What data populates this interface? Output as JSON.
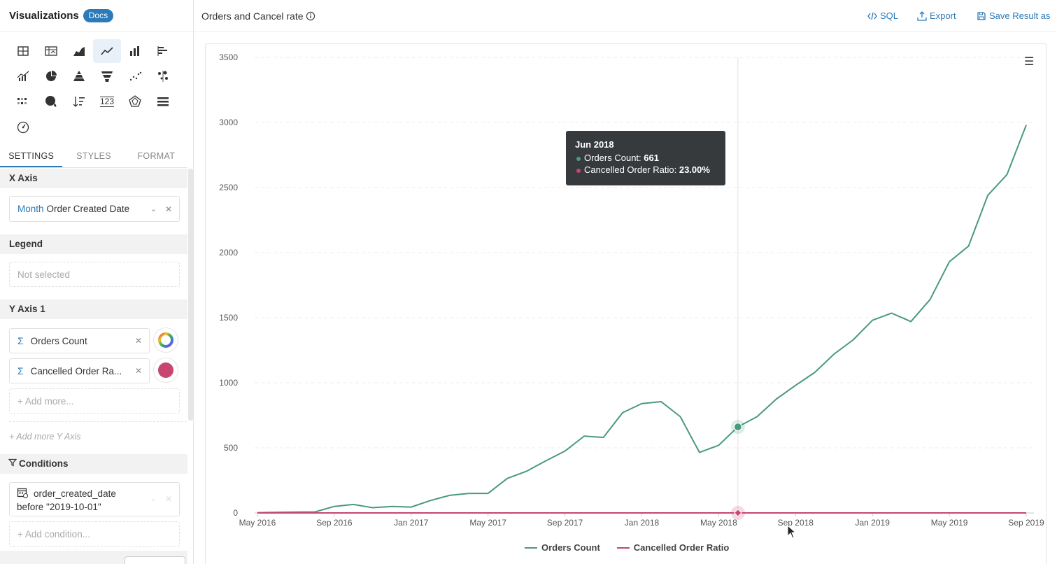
{
  "sidebar": {
    "title": "Visualizations",
    "docs_badge": "Docs",
    "viz_types": [
      {
        "icon": "table-icon"
      },
      {
        "icon": "pivot-table-icon"
      },
      {
        "icon": "area-chart-icon"
      },
      {
        "icon": "line-chart-icon",
        "active": true
      },
      {
        "icon": "column-chart-icon"
      },
      {
        "icon": "bar-chart-icon"
      },
      {
        "icon": "combo-chart-icon"
      },
      {
        "icon": "pie-chart-icon"
      },
      {
        "icon": "pyramid-chart-icon"
      },
      {
        "icon": "funnel-chart-icon"
      },
      {
        "icon": "scatter-chart-icon"
      },
      {
        "icon": "bubble-chart-icon"
      },
      {
        "icon": "heatmap-icon"
      },
      {
        "icon": "geo-map-icon"
      },
      {
        "icon": "sorted-list-icon"
      },
      {
        "icon": "number-kpi-icon",
        "label": "123"
      },
      {
        "icon": "radar-chart-icon"
      },
      {
        "icon": "progress-bars-icon"
      },
      {
        "icon": "gauge-icon"
      }
    ],
    "tabs": [
      "SETTINGS",
      "STYLES",
      "FORMAT"
    ],
    "x_axis": {
      "heading": "X Axis",
      "granularity": "Month",
      "field": "Order Created Date"
    },
    "legend": {
      "heading": "Legend",
      "placeholder": "Not selected"
    },
    "y_axis": {
      "heading": "Y Axis 1",
      "fields": [
        "Orders Count",
        "Cancelled Order Ra..."
      ],
      "add_more": "+ Add more...",
      "add_more_axis": "+ Add more Y Axis"
    },
    "conditions": {
      "heading": "Conditions",
      "field": "order_created_date",
      "rule": "before \"2019-10-01\"",
      "add": "+ Add condition..."
    }
  },
  "topbar": {
    "chart_title": "Orders and Cancel rate",
    "sql_label": "SQL",
    "export_label": "Export",
    "save_label": "Save Result as"
  },
  "tooltip": {
    "title": "Jun 2018",
    "row1_label": "Orders Count: ",
    "row1_value": "661",
    "row2_label": "Cancelled Order Ratio: ",
    "row2_value": "23.00%"
  },
  "colors": {
    "accent": "#2c7ab8",
    "orders_series": "#4a9a7c",
    "cancel_series": "#c8456f"
  },
  "chart_data": {
    "type": "line",
    "x": [
      "May 2016",
      "Jun 2016",
      "Jul 2016",
      "Aug 2016",
      "Sep 2016",
      "Oct 2016",
      "Nov 2016",
      "Dec 2016",
      "Jan 2017",
      "Feb 2017",
      "Mar 2017",
      "Apr 2017",
      "May 2017",
      "Jun 2017",
      "Jul 2017",
      "Aug 2017",
      "Sep 2017",
      "Oct 2017",
      "Nov 2017",
      "Dec 2017",
      "Jan 2018",
      "Feb 2018",
      "Mar 2018",
      "Apr 2018",
      "May 2018",
      "Jun 2018",
      "Jul 2018",
      "Aug 2018",
      "Sep 2018",
      "Oct 2018",
      "Nov 2018",
      "Dec 2018",
      "Jan 2019",
      "Feb 2019",
      "Mar 2019",
      "Apr 2019",
      "May 2019",
      "Jun 2019",
      "Jul 2019",
      "Aug 2019",
      "Sep 2019"
    ],
    "xticks": [
      "May 2016",
      "Sep 2016",
      "Jan 2017",
      "May 2017",
      "Sep 2017",
      "Jan 2018",
      "May 2018",
      "Sep 2018",
      "Jan 2019",
      "May 2019",
      "Sep 2019"
    ],
    "series": [
      {
        "name": "Orders Count",
        "values": [
          2,
          5,
          7,
          8,
          50,
          65,
          40,
          50,
          45,
          95,
          135,
          150,
          150,
          265,
          320,
          400,
          475,
          590,
          580,
          770,
          840,
          855,
          740,
          465,
          520,
          661,
          740,
          875,
          980,
          1080,
          1220,
          1330,
          1480,
          1535,
          1470,
          1640,
          1930,
          2050,
          2440,
          2600,
          2980
        ]
      },
      {
        "name": "Cancelled Order Ratio",
        "values": [
          0.02,
          0.02,
          0.02,
          0.02,
          0.02,
          0.02,
          0.02,
          0.02,
          0.02,
          0.02,
          0.02,
          0.02,
          0.02,
          0.02,
          0.02,
          0.02,
          0.02,
          0.02,
          0.02,
          0.02,
          0.02,
          0.02,
          0.02,
          0.02,
          0.02,
          0.23,
          0.02,
          0.02,
          0.02,
          0.02,
          0.02,
          0.02,
          0.02,
          0.02,
          0.02,
          0.02,
          0.02,
          0.02,
          0.02,
          0.02,
          0.02
        ]
      }
    ],
    "yticks": [
      0,
      500,
      1000,
      1500,
      2000,
      2500,
      3000,
      3500
    ],
    "ylim": [
      0,
      3500
    ],
    "grid": true,
    "legend_position": "bottom",
    "highlight_index": 25
  }
}
